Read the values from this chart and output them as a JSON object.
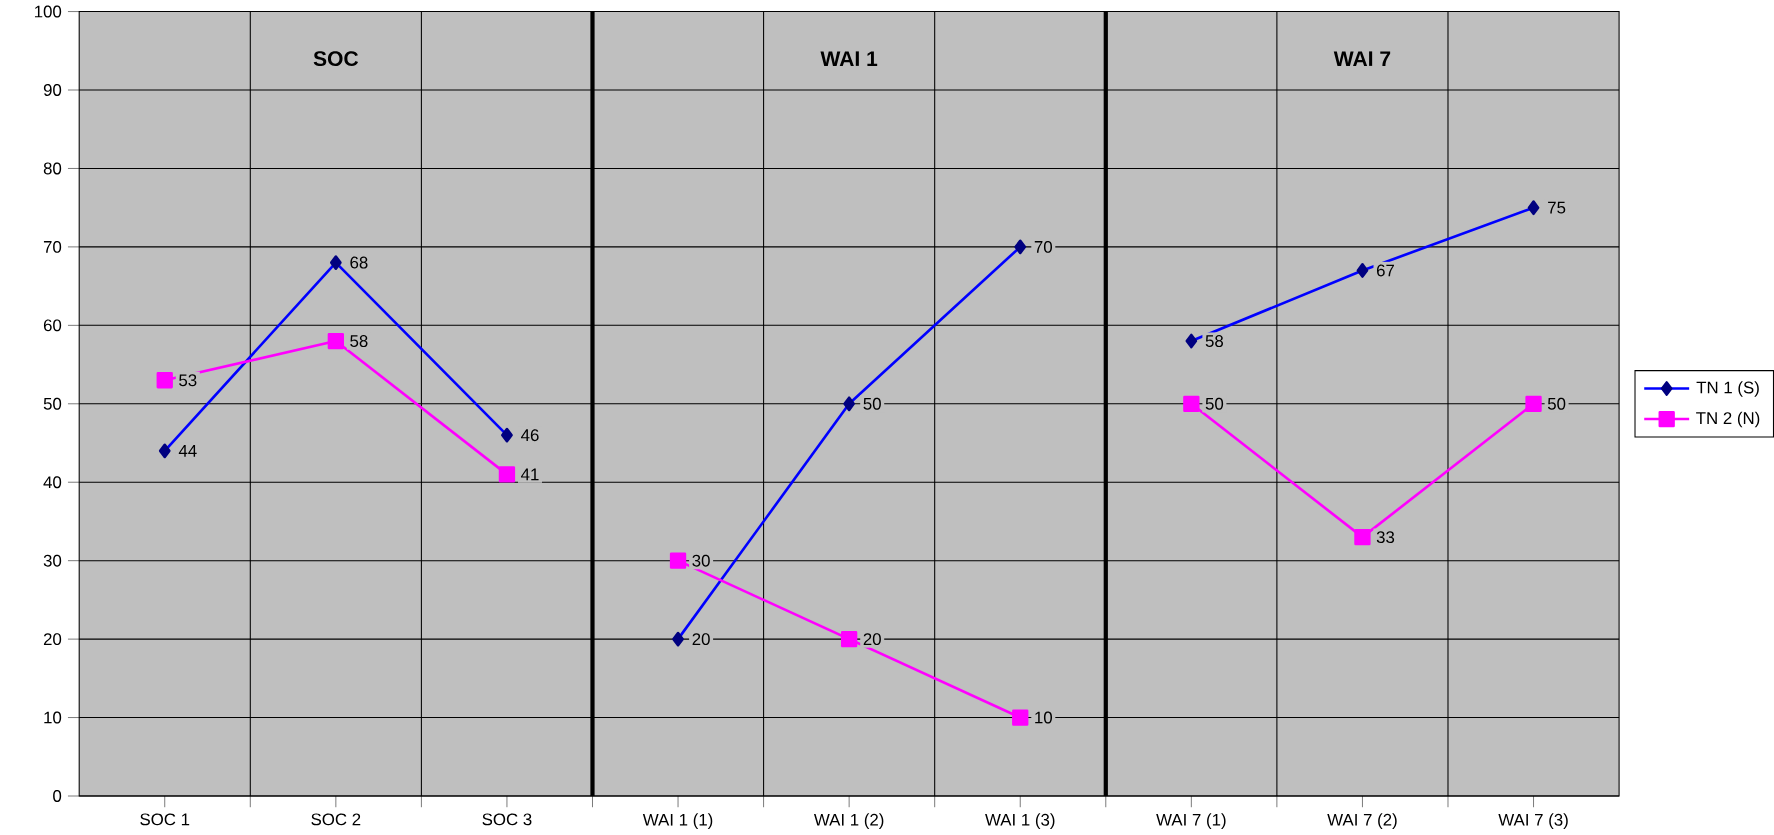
{
  "chart_data": {
    "type": "line",
    "categories": [
      "SOC 1",
      "SOC 2",
      "SOC 3",
      "WAI 1 (1)",
      "WAI 1 (2)",
      "WAI 1 (3)",
      "WAI 7 (1)",
      "WAI 7 (2)",
      "WAI 7 (3)"
    ],
    "series": [
      {
        "name": "TN 1 (S)",
        "color": "#0000ff",
        "marker": "diamond",
        "values": [
          44,
          68,
          46,
          null,
          null,
          null,
          null,
          null,
          null
        ]
      },
      {
        "name": "TN 2 (N)",
        "color": "#ff00ff",
        "marker": "square",
        "values": [
          53,
          58,
          41,
          null,
          null,
          null,
          null,
          null,
          null
        ]
      },
      {
        "color": "#0000ff",
        "marker": "diamond",
        "values": [
          null,
          null,
          null,
          20,
          50,
          70,
          null,
          null,
          null
        ]
      },
      {
        "color": "#ff00ff",
        "marker": "square",
        "values": [
          null,
          null,
          null,
          30,
          20,
          10,
          null,
          null,
          null
        ]
      },
      {
        "color": "#0000ff",
        "marker": "diamond",
        "values": [
          null,
          null,
          null,
          null,
          null,
          null,
          58,
          67,
          75
        ]
      },
      {
        "color": "#ff00ff",
        "marker": "square",
        "values": [
          null,
          null,
          null,
          null,
          null,
          null,
          50,
          33,
          50
        ]
      }
    ],
    "ylim": [
      0,
      100
    ],
    "yticks": [
      0,
      10,
      20,
      30,
      40,
      50,
      60,
      70,
      80,
      90,
      100
    ],
    "grid": true,
    "legend": "right",
    "data_labels": true,
    "annotations": [
      "SOC",
      "WAI 1",
      "WAI 7"
    ]
  }
}
